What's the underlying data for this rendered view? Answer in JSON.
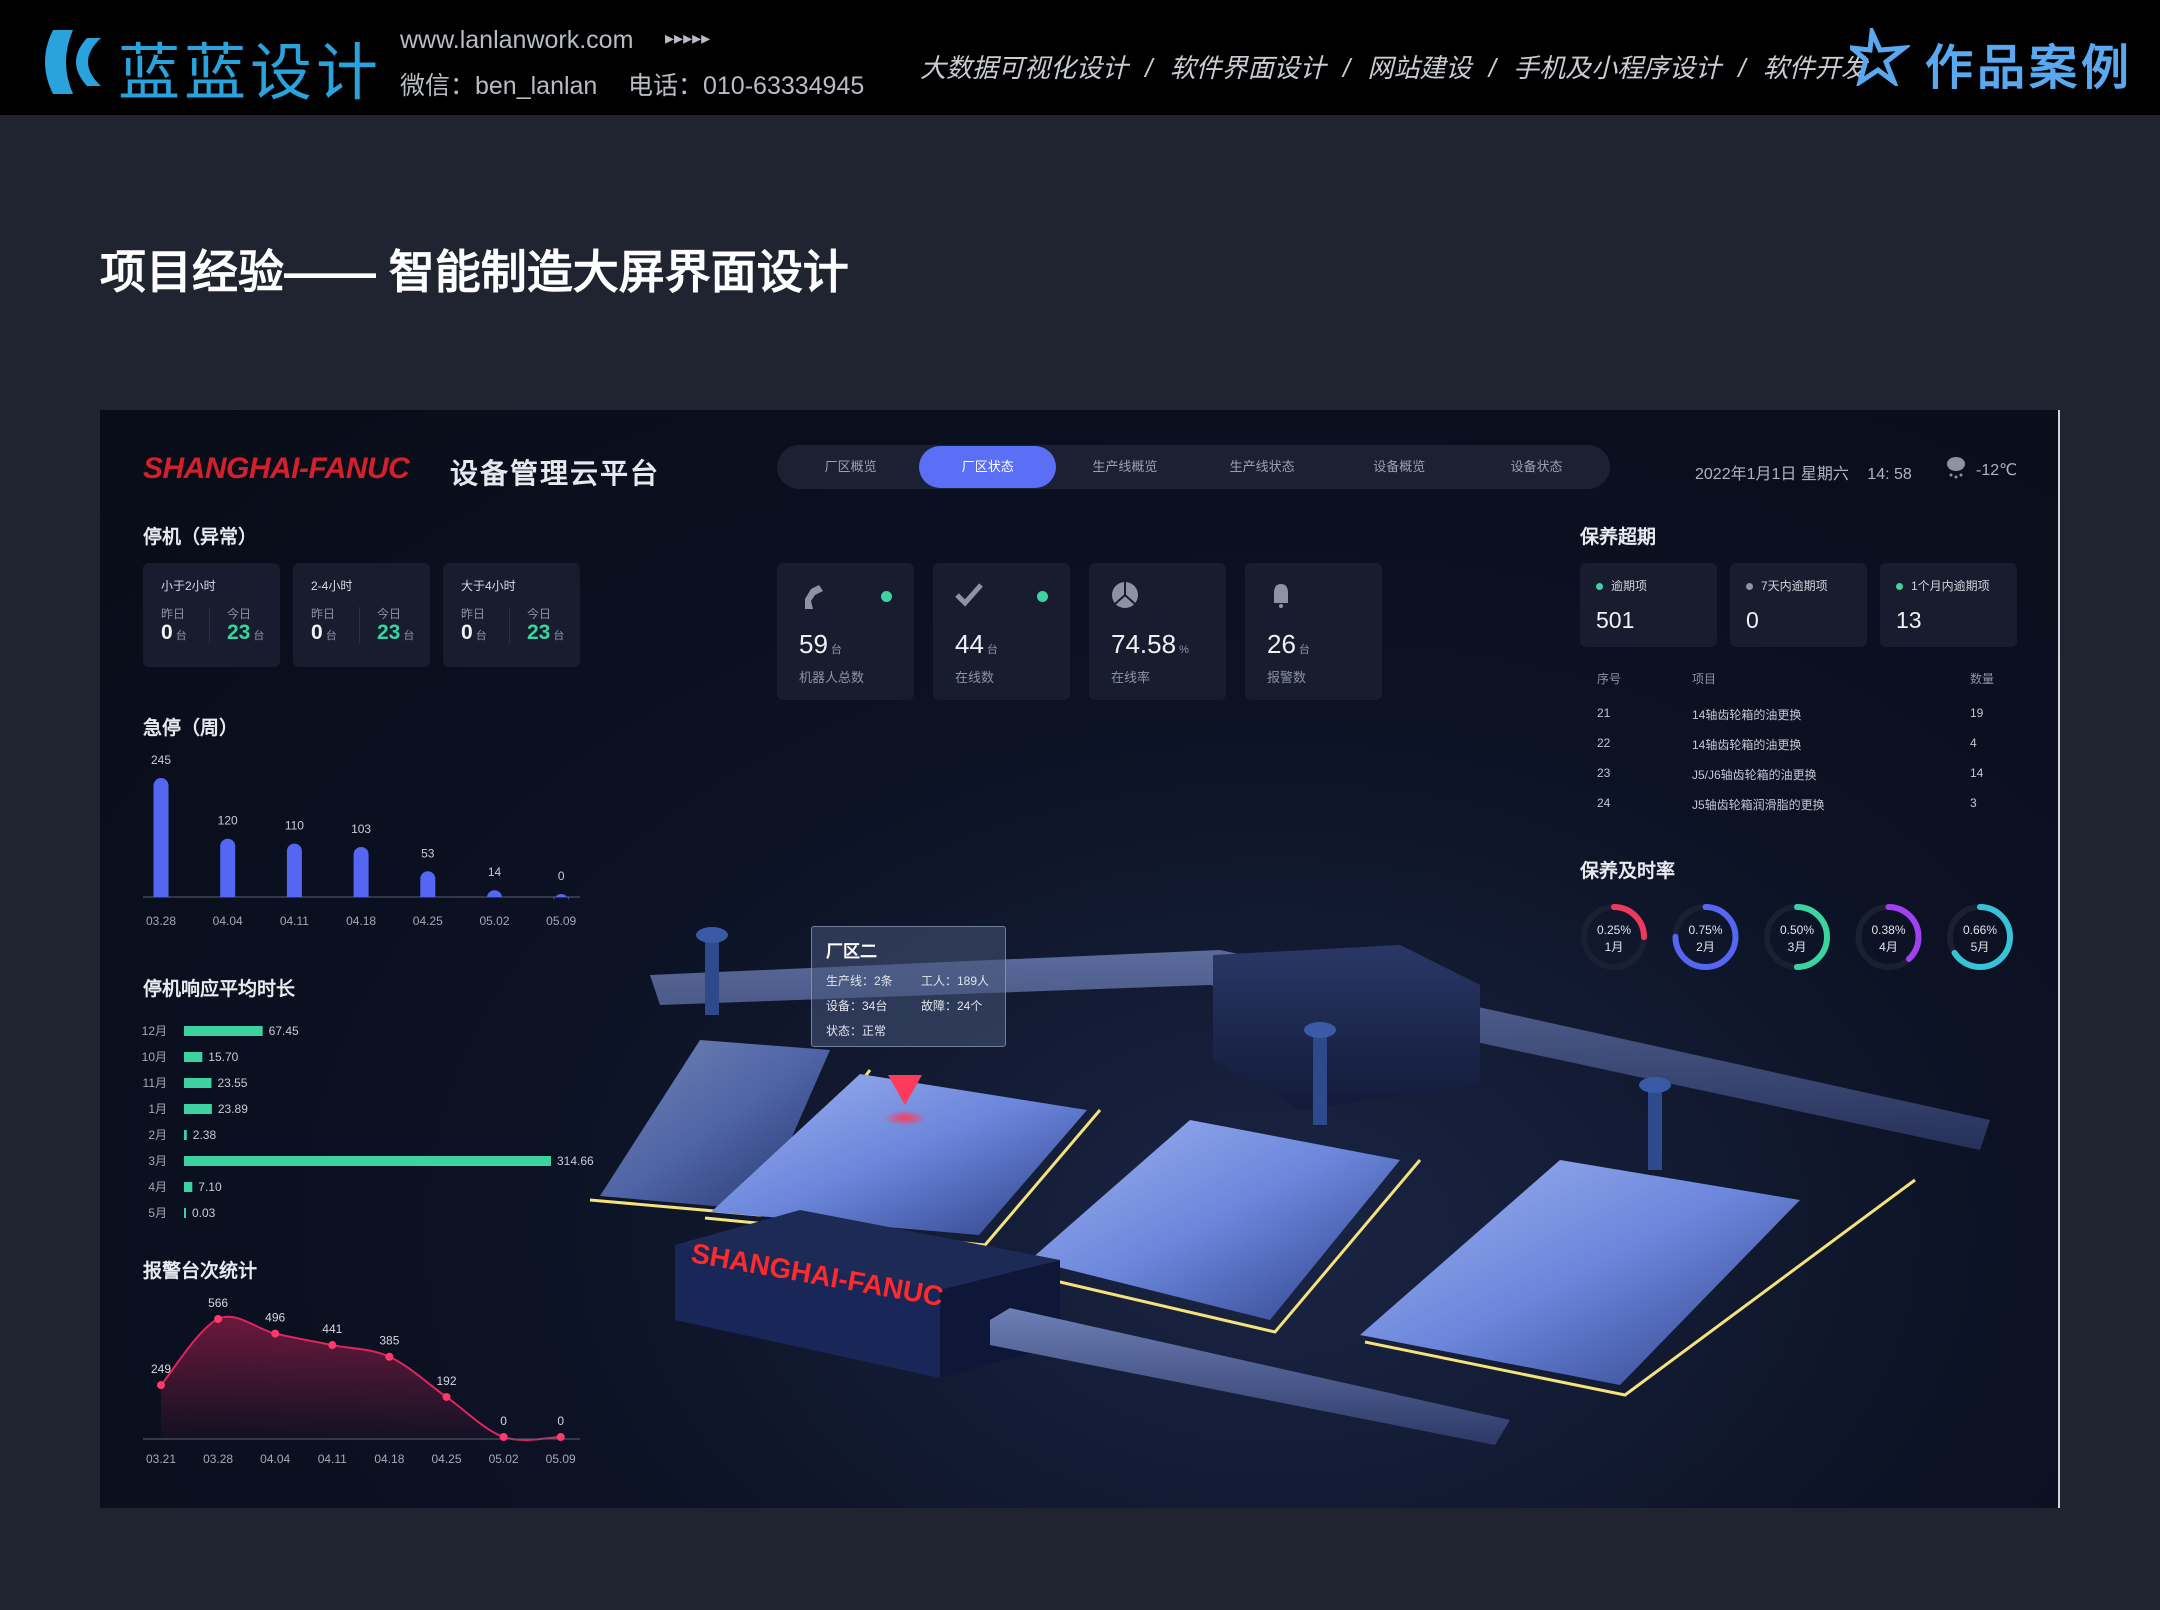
{
  "header": {
    "logo_text": "蓝蓝设计",
    "website": "www.lanlanwork.com",
    "arrows": "▸▸▸▸▸",
    "wechat": "微信：ben_lanlan",
    "phone": "电话：010-63334945",
    "services": [
      "大数据可视化设计",
      "/",
      "软件界面设计",
      "/",
      "网站建设",
      "/",
      "手机及小程序设计",
      "/",
      "软件开发"
    ],
    "cases_label": "作品案例"
  },
  "page_title": "项目经验—— 智能制造大屏界面设计",
  "dashboard": {
    "brand": "SHANGHAI-FANUC",
    "platform": "设备管理云平台",
    "tabs": [
      "厂区概览",
      "厂区状态",
      "生产线概览",
      "生产线状态",
      "设备概览",
      "设备状态"
    ],
    "active_tab": "厂区状态",
    "date": "2022年1月1日 星期六",
    "time": "14: 58",
    "weather_icon": "snow-cloud-icon",
    "temperature": "-12℃",
    "scene_sign": "SHANGHAI-FANUC",
    "colors": {
      "accent": "#5a6ff5",
      "green": "#3cd3a0",
      "brand_red": "#d4202a"
    }
  },
  "downtime": {
    "title": "停机（异常）",
    "cards": [
      {
        "label": "小于2小时",
        "yesterday_label": "昨日",
        "yesterday": "0",
        "today_label": "今日",
        "today": "23",
        "unit": "台"
      },
      {
        "label": "2-4小时",
        "yesterday_label": "昨日",
        "yesterday": "0",
        "today_label": "今日",
        "today": "23",
        "unit": "台"
      },
      {
        "label": "大于4小时",
        "yesterday_label": "昨日",
        "yesterday": "0",
        "today_label": "今日",
        "today": "23",
        "unit": "台"
      }
    ]
  },
  "kpis": [
    {
      "icon": "robot-arm-icon",
      "value": "59",
      "unit": "台",
      "label": "机器人总数",
      "status_dot": "#3cd3a0"
    },
    {
      "icon": "check-icon",
      "value": "44",
      "unit": "台",
      "label": "在线数",
      "status_dot": "#3cd3a0"
    },
    {
      "icon": "pie-icon",
      "value": "74.58",
      "unit": "%",
      "label": "在线率"
    },
    {
      "icon": "bell-icon",
      "value": "26",
      "unit": "台",
      "label": "报警数"
    }
  ],
  "maintenance_overdue": {
    "title": "保养超期",
    "cards": [
      {
        "label": "逾期项",
        "value": "501",
        "dot": "#3cd3a0"
      },
      {
        "label": "7天内逾期项",
        "value": "0",
        "dot": "#8d93a4"
      },
      {
        "label": "1个月内逾期项",
        "value": "13",
        "dot": "#3cd3a0"
      }
    ],
    "table": {
      "headers": [
        "序号",
        "项目",
        "数量"
      ],
      "rows": [
        [
          "21",
          "14轴齿轮箱的油更换",
          "19"
        ],
        [
          "22",
          "14轴齿轮箱的油更换",
          "4"
        ],
        [
          "23",
          "J5/J6轴齿轮箱的油更换",
          "14"
        ],
        [
          "24",
          "J5轴齿轮箱润滑脂的更换",
          "3"
        ]
      ]
    }
  },
  "tooltip": {
    "title": "厂区二",
    "fields": [
      "生产线：2条",
      "工人：189人",
      "设备：34台",
      "故障：24个",
      "状态：正常"
    ]
  },
  "chart_data": [
    {
      "type": "bar",
      "title": "急停（周）",
      "categories": [
        "03.28",
        "04.04",
        "04.11",
        "04.18",
        "04.25",
        "05.02",
        "05.09"
      ],
      "values": [
        245,
        120,
        110,
        103,
        53,
        14,
        0
      ],
      "color": "#5566f2",
      "grid": false
    },
    {
      "type": "bar",
      "orientation": "horizontal",
      "title": "停机响应平均时长",
      "categories": [
        "12月",
        "10月",
        "11月",
        "1月",
        "2月",
        "3月",
        "4月",
        "5月"
      ],
      "values": [
        67.45,
        15.7,
        23.55,
        23.89,
        2.38,
        314.66,
        7.1,
        0.03
      ],
      "labels": [
        "67.45",
        "15.70",
        "23.55",
        "23.89",
        "2.38",
        "314.66",
        "7.10",
        "0.03"
      ],
      "color": "#3cd3a0",
      "grid": false
    },
    {
      "type": "area",
      "title": "报警台次统计",
      "categories": [
        "03.21",
        "03.28",
        "04.04",
        "04.11",
        "04.18",
        "04.25",
        "05.02",
        "05.09"
      ],
      "values": [
        249,
        566,
        496,
        441,
        385,
        192,
        0,
        0
      ],
      "color": "#e0245e",
      "grid": false
    },
    {
      "type": "pie",
      "title": "保养及时率",
      "categories": [
        "1月",
        "2月",
        "3月",
        "4月",
        "5月"
      ],
      "labels": [
        "0.25%",
        "0.75%",
        "0.50%",
        "0.38%",
        "0.66%"
      ],
      "fill_fraction": [
        0.25,
        0.75,
        0.5,
        0.38,
        0.66
      ],
      "colors": [
        "#f0385f",
        "#5566f2",
        "#3cd3a0",
        "#a040f0",
        "#36c3d8"
      ]
    }
  ]
}
